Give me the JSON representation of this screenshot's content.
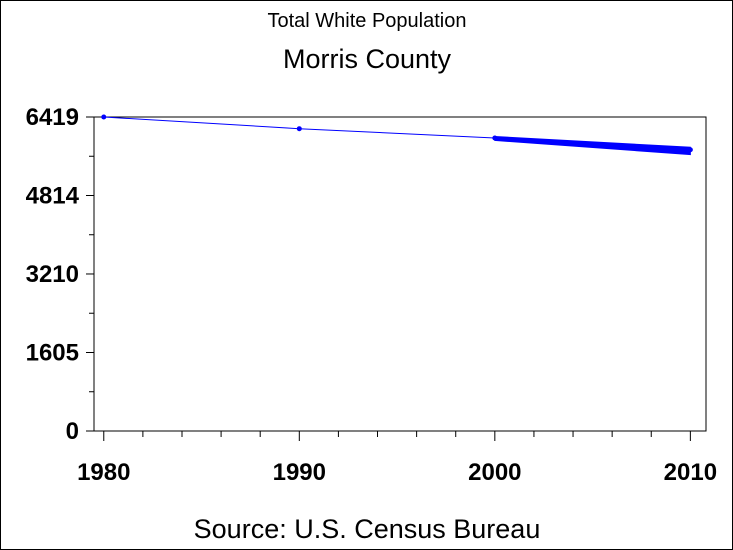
{
  "chart_data": {
    "type": "line",
    "title": "Total White Population",
    "subtitle": "Morris County",
    "footnote": "Source: U.S. Census Bureau",
    "xlabel": "",
    "ylabel": "",
    "x_ticks": [
      "1980",
      "1990",
      "2000",
      "2010"
    ],
    "y_ticks": [
      "0",
      "1605",
      "3210",
      "4814",
      "6419"
    ],
    "xlim": [
      1979.5,
      2010.8
    ],
    "ylim": [
      0,
      6419
    ],
    "grid": false,
    "legend": "none",
    "line_color": "#0000ff",
    "series": [
      {
        "name": "",
        "x": [
          1980,
          1990,
          2000,
          2010
        ],
        "y": [
          6419,
          6180,
          5990,
          5750
        ]
      }
    ],
    "band_2000_2010": {
      "x": [
        2000,
        2010
      ],
      "y_upper": [
        6020,
        5800
      ],
      "y_lower": [
        5940,
        5650
      ]
    }
  }
}
